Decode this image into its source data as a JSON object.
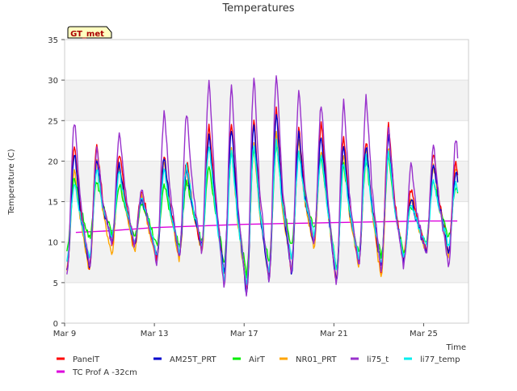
{
  "chart_data": {
    "type": "line",
    "title": "Temperatures",
    "xlabel": "Time",
    "ylabel": "Temperature (C)",
    "site_label": "GT_met",
    "xlim": [
      9.0,
      27.0
    ],
    "ylim": [
      0,
      35
    ],
    "yticks": [
      0,
      5,
      10,
      15,
      20,
      25,
      30,
      35
    ],
    "xticks": [
      {
        "value": 9,
        "label": "Mar 9"
      },
      {
        "value": 13,
        "label": "Mar 13"
      },
      {
        "value": 17,
        "label": "Mar 17"
      },
      {
        "value": 21,
        "label": "Mar 21"
      },
      {
        "value": 25,
        "label": "Mar 25"
      }
    ],
    "grid": "horizontal bands",
    "legend_position": "bottom",
    "daily_extremes": {
      "days": [
        9.1,
        10.1,
        11.1,
        12.1,
        13.1,
        14.1,
        15.1,
        16.1,
        17.1,
        18.1,
        19.1,
        20.1,
        21.1,
        22.1,
        23.1,
        24.1,
        25.1,
        26.1
      ],
      "AM25T_PRT_min": [
        6.3,
        7.0,
        10.0,
        9.8,
        8.0,
        8.5,
        9.5,
        6.5,
        3.5,
        5.5,
        6.3,
        10.0,
        5.0,
        7.5,
        6.8,
        7.5,
        9.0,
        9.0
      ],
      "AM25T_PRT_max": [
        21.0,
        20.5,
        19.5,
        15.5,
        20.5,
        19.0,
        23.0,
        24.0,
        24.5,
        26.0,
        23.5,
        23.0,
        22.0,
        22.0,
        23.0,
        15.5,
        20.0,
        19.0
      ]
    },
    "series": [
      {
        "name": "PanelT",
        "color": "#ff0000",
        "daily_min": [
          6.5,
          7.0,
          10.0,
          9.5,
          7.8,
          8.5,
          9.0,
          6.2,
          3.8,
          5.8,
          6.5,
          10.0,
          5.0,
          7.5,
          6.5,
          7.5,
          9.0,
          9.0
        ],
        "daily_max": [
          22.0,
          22.0,
          21.0,
          16.5,
          21.0,
          20.0,
          24.5,
          25.0,
          25.0,
          26.5,
          24.0,
          24.5,
          23.0,
          22.5,
          24.5,
          16.5,
          21.0,
          20.0
        ]
      },
      {
        "name": "AM25T_PRT",
        "color": "#0000cc",
        "daily_min": [
          6.3,
          7.0,
          10.0,
          9.8,
          8.0,
          8.5,
          9.5,
          6.5,
          3.5,
          5.5,
          6.3,
          10.0,
          5.0,
          7.5,
          6.8,
          7.5,
          9.0,
          9.0
        ],
        "daily_max": [
          21.0,
          20.5,
          19.5,
          15.5,
          20.5,
          19.0,
          23.0,
          24.0,
          24.5,
          26.0,
          23.5,
          23.0,
          22.0,
          22.0,
          23.0,
          15.5,
          20.0,
          19.0
        ]
      },
      {
        "name": "AirT",
        "color": "#00ee00",
        "daily_min": [
          9.0,
          10.5,
          11.0,
          10.5,
          9.5,
          9.5,
          10.0,
          7.5,
          6.0,
          7.5,
          9.5,
          11.5,
          7.0,
          8.5,
          8.0,
          8.5,
          10.0,
          10.5
        ],
        "daily_max": [
          18.0,
          17.5,
          17.0,
          15.0,
          17.0,
          17.5,
          19.5,
          21.0,
          21.5,
          22.0,
          21.0,
          20.5,
          19.5,
          20.0,
          20.5,
          14.5,
          17.5,
          17.0
        ]
      },
      {
        "name": "NR01_PRT",
        "color": "#ffa500",
        "daily_min": [
          6.8,
          6.5,
          8.5,
          8.8,
          7.5,
          8.0,
          8.8,
          6.0,
          4.0,
          5.8,
          6.5,
          9.5,
          5.5,
          7.0,
          5.5,
          8.5,
          8.5,
          8.5
        ],
        "daily_max": [
          19.0,
          20.0,
          19.5,
          15.5,
          20.0,
          19.0,
          22.0,
          21.5,
          22.0,
          23.5,
          22.5,
          21.5,
          21.0,
          21.5,
          22.0,
          15.5,
          19.5,
          19.0
        ]
      },
      {
        "name": "li75_t",
        "color": "#9932cc",
        "daily_min": [
          6.2,
          6.8,
          9.8,
          9.5,
          7.5,
          8.0,
          9.0,
          4.0,
          3.8,
          5.2,
          6.2,
          9.5,
          4.8,
          7.0,
          6.5,
          7.0,
          8.5,
          7.0
        ],
        "daily_max": [
          25.0,
          21.5,
          23.5,
          16.5,
          26.0,
          26.0,
          30.0,
          29.5,
          30.5,
          30.8,
          28.5,
          27.0,
          27.5,
          28.0,
          24.0,
          19.5,
          22.0,
          23.0
        ]
      },
      {
        "name": "li77_temp",
        "color": "#00eeee",
        "daily_min": [
          8.0,
          8.0,
          10.5,
          10.0,
          8.5,
          9.0,
          9.5,
          5.5,
          5.0,
          6.5,
          8.0,
          11.0,
          6.5,
          8.0,
          7.5,
          8.0,
          9.5,
          9.5
        ],
        "daily_max": [
          17.5,
          19.0,
          18.5,
          15.5,
          19.0,
          19.5,
          22.0,
          21.5,
          22.0,
          22.5,
          21.0,
          20.5,
          20.0,
          20.5,
          21.0,
          15.0,
          17.5,
          17.5
        ]
      },
      {
        "name": "TC Prof A -32cm",
        "color": "#dd00dd",
        "x": [
          9.5,
          11.0,
          13.0,
          15.0,
          17.0,
          19.0,
          21.0,
          23.0,
          25.0,
          26.5
        ],
        "values": [
          11.2,
          11.4,
          11.8,
          12.0,
          12.2,
          12.3,
          12.4,
          12.5,
          12.6,
          12.6
        ]
      }
    ]
  }
}
